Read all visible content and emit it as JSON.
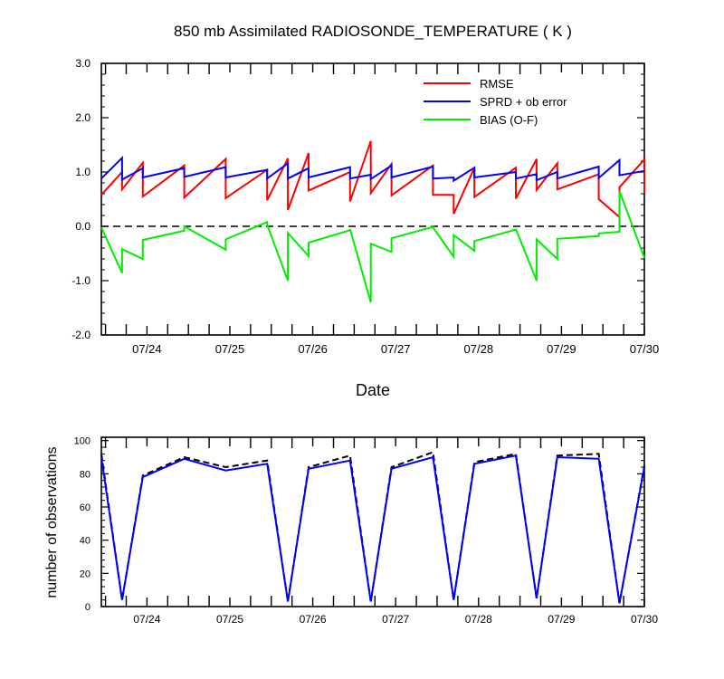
{
  "chart_data": [
    {
      "type": "line",
      "title": "850 mb Assimilated RADIOSONDE_TEMPERATURE ( K )",
      "xlabel": "Date",
      "ylabel": "",
      "x_ticks": [
        "07/24",
        "07/25",
        "07/26",
        "07/27",
        "07/28",
        "07/29",
        "07/30"
      ],
      "x_tick_days": [
        24,
        25,
        26,
        27,
        28,
        29,
        30
      ],
      "xlim": [
        23.45,
        30.0
      ],
      "ylim": [
        -2.0,
        3.0
      ],
      "y_ticks": [
        "-2.0",
        "-1.0",
        "0.0",
        "1.0",
        "2.0",
        "3.0"
      ],
      "y_tick_values": [
        -2,
        -1,
        0,
        1,
        2,
        3
      ],
      "legend_position": "top-right",
      "zero_line": {
        "style": "dashed",
        "color": "#000000"
      },
      "series": [
        {
          "name": "RMSE",
          "color": "#ff0000",
          "x": [
            23.45,
            23.7,
            23.7,
            23.95,
            23.95,
            24.45,
            24.45,
            24.95,
            24.95,
            25.45,
            25.45,
            25.7,
            25.7,
            25.95,
            25.95,
            26.45,
            26.45,
            26.7,
            26.7,
            26.95,
            26.95,
            27.45,
            27.45,
            27.7,
            27.7,
            27.95,
            27.95,
            28.45,
            28.45,
            28.7,
            28.7,
            28.95,
            28.95,
            29.45,
            29.45,
            29.7,
            29.7,
            30.0,
            30.0
          ],
          "y": [
            0.58,
            1.0,
            0.68,
            1.17,
            0.55,
            1.12,
            0.53,
            1.24,
            0.52,
            1.04,
            0.48,
            1.25,
            0.3,
            1.35,
            0.66,
            1.0,
            0.46,
            1.57,
            0.61,
            1.15,
            0.57,
            1.12,
            0.58,
            0.58,
            0.23,
            1.08,
            0.54,
            1.08,
            0.51,
            1.24,
            0.67,
            1.16,
            0.68,
            0.96,
            0.5,
            0.17,
            0.72,
            1.23,
            0.6
          ]
        },
        {
          "name": "SPRD + ob error",
          "color": "#0000ff",
          "x": [
            23.45,
            23.7,
            23.7,
            23.95,
            23.95,
            24.45,
            24.45,
            24.95,
            24.95,
            25.45,
            25.45,
            25.7,
            25.7,
            25.95,
            25.95,
            26.45,
            26.45,
            26.7,
            26.7,
            26.95,
            26.95,
            27.45,
            27.45,
            27.7,
            27.7,
            27.95,
            27.95,
            28.45,
            28.45,
            28.7,
            28.7,
            28.95,
            28.95,
            29.45,
            29.45,
            29.7,
            29.7,
            30.0
          ],
          "y": [
            0.88,
            1.26,
            0.86,
            1.07,
            0.9,
            1.07,
            0.91,
            1.09,
            0.9,
            1.04,
            0.88,
            1.16,
            0.88,
            1.07,
            0.9,
            1.09,
            0.88,
            0.95,
            0.87,
            1.12,
            0.9,
            1.1,
            0.88,
            0.9,
            0.84,
            1.08,
            0.9,
            1.0,
            0.88,
            0.96,
            0.85,
            1.0,
            0.88,
            1.1,
            0.89,
            1.22,
            0.94,
            1.02
          ]
        },
        {
          "name": "BIAS (O-F)",
          "color": "#00ee00",
          "x": [
            23.45,
            23.7,
            23.7,
            23.95,
            23.95,
            24.45,
            24.45,
            24.95,
            24.95,
            25.45,
            25.45,
            25.7,
            25.7,
            25.95,
            25.95,
            26.45,
            26.45,
            26.7,
            26.7,
            26.95,
            26.95,
            27.45,
            27.45,
            27.7,
            27.7,
            27.95,
            27.95,
            28.45,
            28.45,
            28.7,
            28.7,
            28.95,
            28.95,
            29.45,
            29.45,
            29.7,
            29.7,
            30.0
          ],
          "y": [
            -0.02,
            -0.86,
            -0.42,
            -0.6,
            -0.25,
            -0.08,
            0.0,
            -0.43,
            -0.24,
            0.08,
            0.03,
            -1.0,
            -0.12,
            -0.55,
            -0.3,
            -0.07,
            -0.05,
            -1.4,
            -0.32,
            -0.47,
            -0.22,
            -0.01,
            -0.02,
            -0.56,
            -0.16,
            -0.45,
            -0.27,
            -0.06,
            -0.05,
            -1.0,
            -0.24,
            -0.6,
            -0.23,
            -0.18,
            -0.13,
            -0.1,
            0.65,
            -0.58
          ]
        }
      ]
    },
    {
      "type": "line",
      "title": "",
      "xlabel": "",
      "ylabel": "number of observations",
      "x_ticks": [
        "07/24",
        "07/25",
        "07/26",
        "07/27",
        "07/28",
        "07/29",
        "07/30"
      ],
      "x_tick_days": [
        24,
        25,
        26,
        27,
        28,
        29,
        30
      ],
      "xlim": [
        23.45,
        30.0
      ],
      "ylim": [
        0,
        102
      ],
      "y_ticks": [
        "0",
        "20",
        "40",
        "60",
        "80",
        "100"
      ],
      "y_tick_values": [
        0,
        20,
        40,
        60,
        80,
        100
      ],
      "series": [
        {
          "name": "",
          "color": "#000000",
          "style": "dashed",
          "x": [
            23.45,
            23.7,
            23.95,
            24.45,
            24.95,
            25.45,
            25.7,
            25.95,
            26.45,
            26.7,
            26.95,
            27.45,
            27.7,
            27.95,
            28.45,
            28.7,
            28.95,
            29.45,
            29.7,
            30.0
          ],
          "y": [
            92,
            4,
            79,
            90,
            84,
            88,
            3,
            84,
            91,
            3,
            84,
            93,
            4,
            87,
            92,
            5,
            91,
            92,
            2,
            85
          ]
        },
        {
          "name": "",
          "color": "#0000ff",
          "style": "solid",
          "x": [
            23.45,
            23.7,
            23.95,
            24.45,
            24.95,
            25.45,
            25.7,
            25.95,
            26.45,
            26.7,
            26.95,
            27.45,
            27.7,
            27.95,
            28.45,
            28.7,
            28.95,
            29.45,
            29.7,
            30.0
          ],
          "y": [
            90,
            4,
            78,
            89,
            82,
            86,
            3,
            83,
            88,
            3,
            83,
            90,
            4,
            86,
            91,
            5,
            90,
            89,
            2,
            84
          ]
        }
      ]
    }
  ]
}
